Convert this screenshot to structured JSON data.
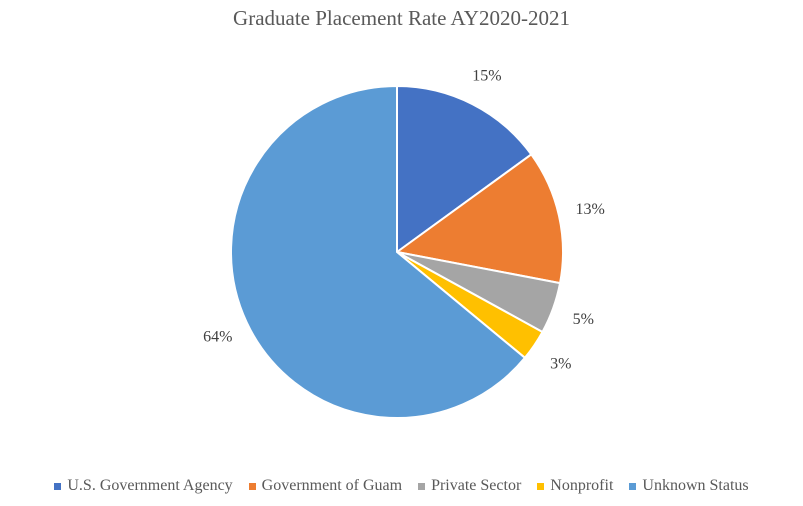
{
  "chart_data": {
    "type": "pie",
    "title": "Graduate Placement Rate AY2020-2021",
    "categories": [
      "U.S. Government Agency",
      "Government of Guam",
      "Private Sector",
      "Nonprofit",
      "Unknown Status"
    ],
    "values": [
      15,
      13,
      5,
      3,
      64
    ],
    "data_labels": [
      "15%",
      "13%",
      "5%",
      "3%",
      "64%"
    ],
    "colors": [
      "#4472C4",
      "#ED7D31",
      "#A5A5A5",
      "#FFC000",
      "#5B9BD5"
    ],
    "legend": "bottom"
  }
}
